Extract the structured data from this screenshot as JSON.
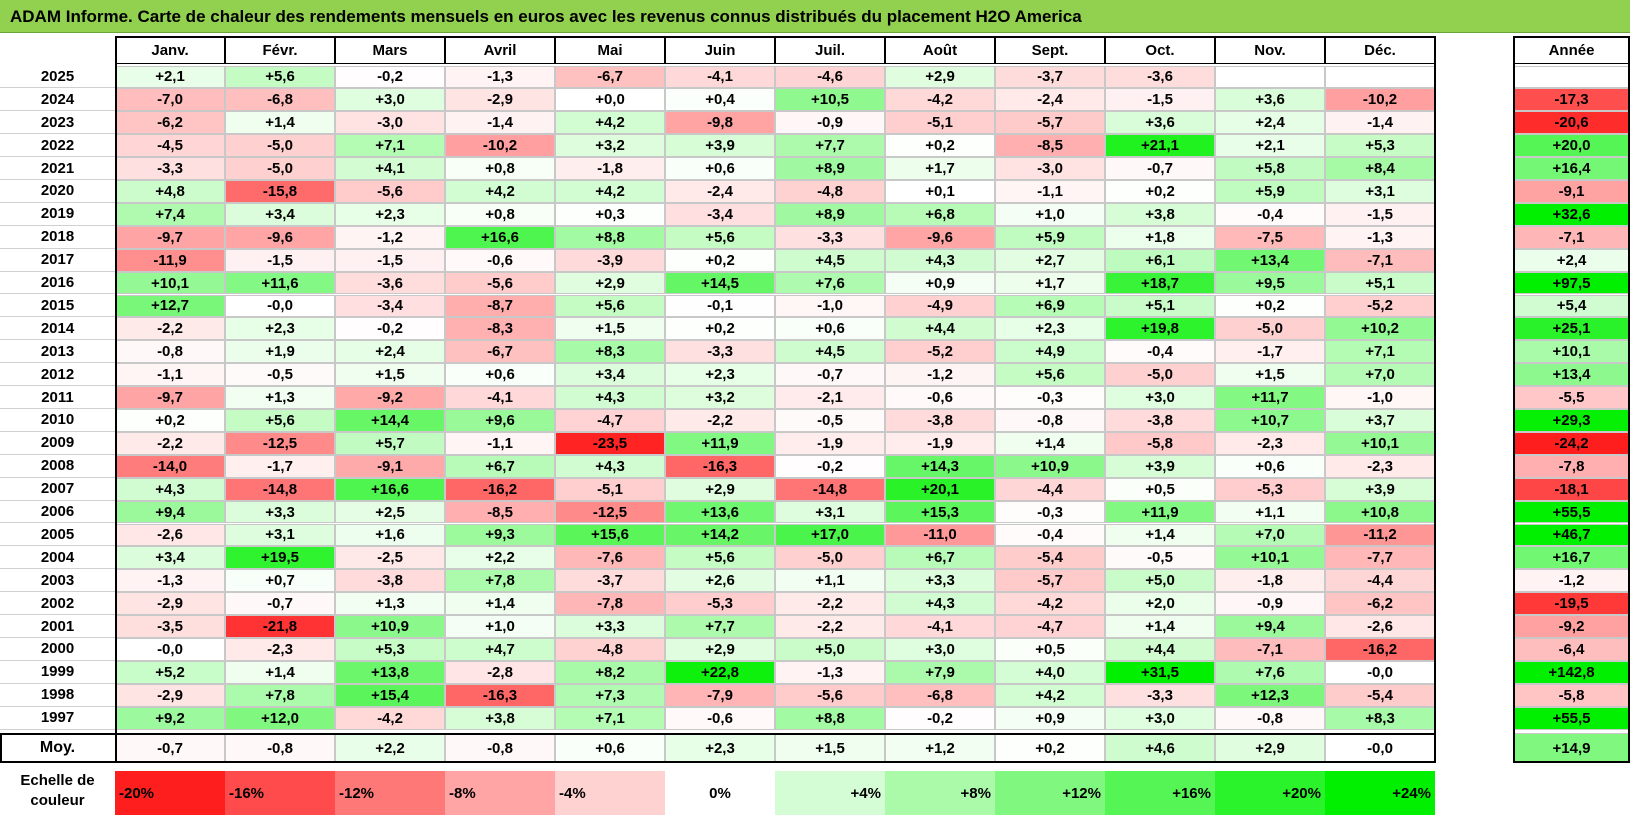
{
  "title": "ADAM Informe. Carte de chaleur des rendements mensuels en euros avec les revenus connus distribués du placement H2O America",
  "chart_data": {
    "type": "heatmap",
    "title": "ADAM Informe. Carte de chaleur des rendements mensuels en euros avec les revenus connus distribués du placement H2O America",
    "columns": [
      "Janv.",
      "Févr.",
      "Mars",
      "Avril",
      "Mai",
      "Juin",
      "Juil.",
      "Août",
      "Sept.",
      "Oct.",
      "Nov.",
      "Déc."
    ],
    "annual_header": "Année",
    "rows": [
      {
        "year": "2025",
        "values": [
          "+2,1",
          "+5,6",
          "-0,2",
          "-1,3",
          "-6,7",
          "-4,1",
          "-4,6",
          "+2,9",
          "-3,7",
          "-3,6",
          "",
          ""
        ],
        "annual": ""
      },
      {
        "year": "2024",
        "values": [
          "-7,0",
          "-6,8",
          "+3,0",
          "-2,9",
          "+0,0",
          "+0,4",
          "+10,5",
          "-4,2",
          "-2,4",
          "-1,5",
          "+3,6",
          "-10,2"
        ],
        "annual": "-17,3"
      },
      {
        "year": "2023",
        "values": [
          "-6,2",
          "+1,4",
          "-3,0",
          "-1,4",
          "+4,2",
          "-9,8",
          "-0,9",
          "-5,1",
          "-5,7",
          "+3,6",
          "+2,4",
          "-1,4"
        ],
        "annual": "-20,6"
      },
      {
        "year": "2022",
        "values": [
          "-4,5",
          "-5,0",
          "+7,1",
          "-10,2",
          "+3,2",
          "+3,9",
          "+7,7",
          "+0,2",
          "-8,5",
          "+21,1",
          "+2,1",
          "+5,3"
        ],
        "annual": "+20,0"
      },
      {
        "year": "2021",
        "values": [
          "-3,3",
          "-5,0",
          "+4,1",
          "+0,8",
          "-1,8",
          "+0,6",
          "+8,9",
          "+1,7",
          "-3,0",
          "-0,7",
          "+5,8",
          "+8,4"
        ],
        "annual": "+16,4"
      },
      {
        "year": "2020",
        "values": [
          "+4,8",
          "-15,8",
          "-5,6",
          "+4,2",
          "+4,2",
          "-2,4",
          "-4,8",
          "+0,1",
          "-1,1",
          "+0,2",
          "+5,9",
          "+3,1"
        ],
        "annual": "-9,1"
      },
      {
        "year": "2019",
        "values": [
          "+7,4",
          "+3,4",
          "+2,3",
          "+0,8",
          "+0,3",
          "-3,4",
          "+8,9",
          "+6,8",
          "+1,0",
          "+3,8",
          "-0,4",
          "-1,5"
        ],
        "annual": "+32,6"
      },
      {
        "year": "2018",
        "values": [
          "-9,7",
          "-9,6",
          "-1,2",
          "+16,6",
          "+8,8",
          "+5,6",
          "-3,3",
          "-9,6",
          "+5,9",
          "+1,8",
          "-7,5",
          "-1,3"
        ],
        "annual": "-7,1"
      },
      {
        "year": "2017",
        "values": [
          "-11,9",
          "-1,5",
          "-1,5",
          "-0,6",
          "-3,9",
          "+0,2",
          "+4,5",
          "+4,3",
          "+2,7",
          "+6,1",
          "+13,4",
          "-7,1"
        ],
        "annual": "+2,4"
      },
      {
        "year": "2016",
        "values": [
          "+10,1",
          "+11,6",
          "-3,6",
          "-5,6",
          "+2,9",
          "+14,5",
          "+7,6",
          "+0,9",
          "+1,7",
          "+18,7",
          "+9,5",
          "+5,1"
        ],
        "annual": "+97,5"
      },
      {
        "year": "2015",
        "values": [
          "+12,7",
          "-0,0",
          "-3,4",
          "-8,7",
          "+5,6",
          "-0,1",
          "-1,0",
          "-4,9",
          "+6,9",
          "+5,1",
          "+0,2",
          "-5,2"
        ],
        "annual": "+5,4"
      },
      {
        "year": "2014",
        "values": [
          "-2,2",
          "+2,3",
          "-0,2",
          "-8,3",
          "+1,5",
          "+0,2",
          "+0,6",
          "+4,4",
          "+2,3",
          "+19,8",
          "-5,0",
          "+10,2"
        ],
        "annual": "+25,1"
      },
      {
        "year": "2013",
        "values": [
          "-0,8",
          "+1,9",
          "+2,4",
          "-6,7",
          "+8,3",
          "-3,3",
          "+4,5",
          "-5,2",
          "+4,9",
          "-0,4",
          "-1,7",
          "+7,1"
        ],
        "annual": "+10,1"
      },
      {
        "year": "2012",
        "values": [
          "-1,1",
          "-0,5",
          "+1,5",
          "+0,6",
          "+3,4",
          "+2,3",
          "-0,7",
          "-1,2",
          "+5,6",
          "-5,0",
          "+1,5",
          "+7,0"
        ],
        "annual": "+13,4"
      },
      {
        "year": "2011",
        "values": [
          "-9,7",
          "+1,3",
          "-9,2",
          "-4,1",
          "+4,3",
          "+3,2",
          "-2,1",
          "-0,6",
          "-0,3",
          "+3,0",
          "+11,7",
          "-1,0"
        ],
        "annual": "-5,5"
      },
      {
        "year": "2010",
        "values": [
          "+0,2",
          "+5,6",
          "+14,4",
          "+9,6",
          "-4,7",
          "-2,2",
          "-0,5",
          "-3,8",
          "-0,8",
          "-3,8",
          "+10,7",
          "+3,7"
        ],
        "annual": "+29,3"
      },
      {
        "year": "2009",
        "values": [
          "-2,2",
          "-12,5",
          "+5,7",
          "-1,1",
          "-23,5",
          "+11,9",
          "-1,9",
          "-1,9",
          "+1,4",
          "-5,8",
          "-2,3",
          "+10,1"
        ],
        "annual": "-24,2"
      },
      {
        "year": "2008",
        "values": [
          "-14,0",
          "-1,7",
          "-9,1",
          "+6,7",
          "+4,3",
          "-16,3",
          "-0,2",
          "+14,3",
          "+10,9",
          "+3,9",
          "+0,6",
          "-2,3"
        ],
        "annual": "-7,8"
      },
      {
        "year": "2007",
        "values": [
          "+4,3",
          "-14,8",
          "+16,6",
          "-16,2",
          "-5,1",
          "+2,9",
          "-14,8",
          "+20,1",
          "-4,4",
          "+0,5",
          "-5,3",
          "+3,9"
        ],
        "annual": "-18,1"
      },
      {
        "year": "2006",
        "values": [
          "+9,4",
          "+3,3",
          "+2,5",
          "-8,5",
          "-12,5",
          "+13,6",
          "+3,1",
          "+15,3",
          "-0,3",
          "+11,9",
          "+1,1",
          "+10,8"
        ],
        "annual": "+55,5"
      },
      {
        "year": "2005",
        "values": [
          "-2,6",
          "+3,1",
          "+1,6",
          "+9,3",
          "+15,6",
          "+14,2",
          "+17,0",
          "-11,0",
          "-0,4",
          "+1,4",
          "+7,0",
          "-11,2"
        ],
        "annual": "+46,7"
      },
      {
        "year": "2004",
        "values": [
          "+3,4",
          "+19,5",
          "-2,5",
          "+2,2",
          "-7,6",
          "+5,6",
          "-5,0",
          "+6,7",
          "-5,4",
          "-0,5",
          "+10,1",
          "-7,7"
        ],
        "annual": "+16,7"
      },
      {
        "year": "2003",
        "values": [
          "-1,3",
          "+0,7",
          "-3,8",
          "+7,8",
          "-3,7",
          "+2,6",
          "+1,1",
          "+3,3",
          "-5,7",
          "+5,0",
          "-1,8",
          "-4,4"
        ],
        "annual": "-1,2"
      },
      {
        "year": "2002",
        "values": [
          "-2,9",
          "-0,7",
          "+1,3",
          "+1,4",
          "-7,8",
          "-5,3",
          "-2,2",
          "+4,3",
          "-4,2",
          "+2,0",
          "-0,9",
          "-6,2"
        ],
        "annual": "-19,5"
      },
      {
        "year": "2001",
        "values": [
          "-3,5",
          "-21,8",
          "+10,9",
          "+1,0",
          "+3,3",
          "+7,7",
          "-2,2",
          "-4,1",
          "-4,7",
          "+1,4",
          "+9,4",
          "-2,6"
        ],
        "annual": "-9,2"
      },
      {
        "year": "2000",
        "values": [
          "-0,0",
          "-2,3",
          "+5,3",
          "+4,7",
          "-4,8",
          "+2,9",
          "+5,0",
          "+3,0",
          "+0,5",
          "+4,4",
          "-7,1",
          "-16,2"
        ],
        "annual": "-6,4"
      },
      {
        "year": "1999",
        "values": [
          "+5,2",
          "+1,4",
          "+13,8",
          "-2,8",
          "+8,2",
          "+22,8",
          "-1,3",
          "+7,9",
          "+4,0",
          "+31,5",
          "+7,6",
          "-0,0"
        ],
        "annual": "+142,8"
      },
      {
        "year": "1998",
        "values": [
          "-2,9",
          "+7,8",
          "+15,4",
          "-16,3",
          "+7,3",
          "-7,9",
          "-5,6",
          "-6,8",
          "+4,2",
          "-3,3",
          "+12,3",
          "-5,4"
        ],
        "annual": "-5,8"
      },
      {
        "year": "1997",
        "values": [
          "+9,2",
          "+12,0",
          "-4,2",
          "+3,8",
          "+7,1",
          "-0,6",
          "+8,8",
          "-0,2",
          "+0,9",
          "+3,0",
          "-0,8",
          "+8,3"
        ],
        "annual": "+55,5"
      }
    ],
    "average": {
      "label": "Moy.",
      "values": [
        "-0,7",
        "-0,8",
        "+2,2",
        "-0,8",
        "+0,6",
        "+2,3",
        "+1,5",
        "+1,2",
        "+0,2",
        "+4,6",
        "+2,9",
        "-0,0"
      ],
      "annual": "+14,9"
    },
    "scale": {
      "label_line1": "Echelle de",
      "label_line2": "couleur",
      "items": [
        "-20%",
        "-16%",
        "-12%",
        "-8%",
        "-4%",
        "0%",
        "+4%",
        "+8%",
        "+12%",
        "+16%",
        "+20%",
        "+24%"
      ],
      "values": [
        -20,
        -16,
        -12,
        -8,
        -4,
        0,
        4,
        8,
        12,
        16,
        20,
        24
      ]
    },
    "colors": {
      "negative_max": "#ff0000",
      "zero": "#ffffff",
      "positive_max": "#00ff00",
      "title_bar": "#92d050"
    }
  }
}
